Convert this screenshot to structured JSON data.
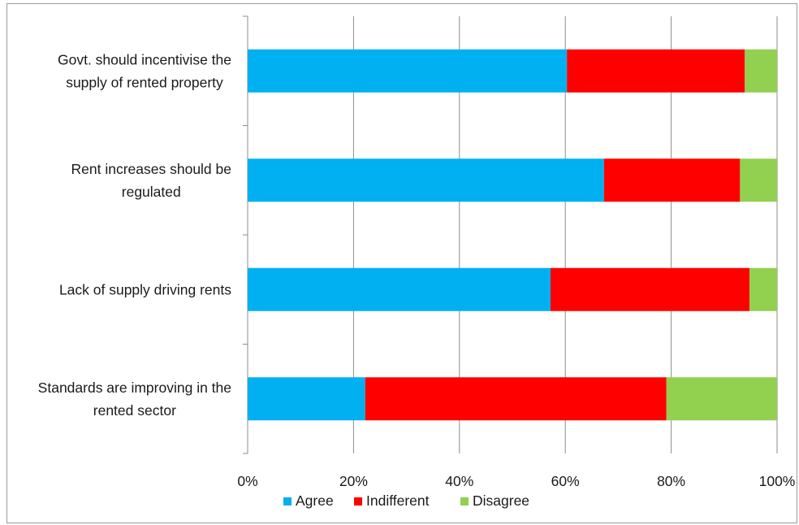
{
  "chart_data": {
    "type": "bar",
    "orientation": "horizontal",
    "stacked": "percent",
    "categories": [
      [
        "Govt. should incentivise the",
        "supply of rented property"
      ],
      [
        "Rent increases should be",
        "regulated"
      ],
      [
        "Lack of supply driving rents"
      ],
      [
        "Standards are improving in the",
        "rented sector"
      ]
    ],
    "series": [
      {
        "name": "Agree",
        "color": "#00B0F0",
        "values": [
          60.3,
          67.3,
          57.2,
          22.2
        ]
      },
      {
        "name": "Indifferent",
        "color": "#FF0000",
        "values": [
          33.6,
          25.7,
          37.6,
          56.9
        ]
      },
      {
        "name": "Disagree",
        "color": "#92D050",
        "values": [
          6.1,
          7.0,
          5.2,
          20.9
        ]
      }
    ],
    "xlim": [
      0,
      100
    ],
    "x_ticks": [
      "0%",
      "20%",
      "40%",
      "60%",
      "80%",
      "100%"
    ],
    "grid": "vertical",
    "legend": "bottom",
    "title": "",
    "xlabel": "",
    "ylabel": ""
  }
}
